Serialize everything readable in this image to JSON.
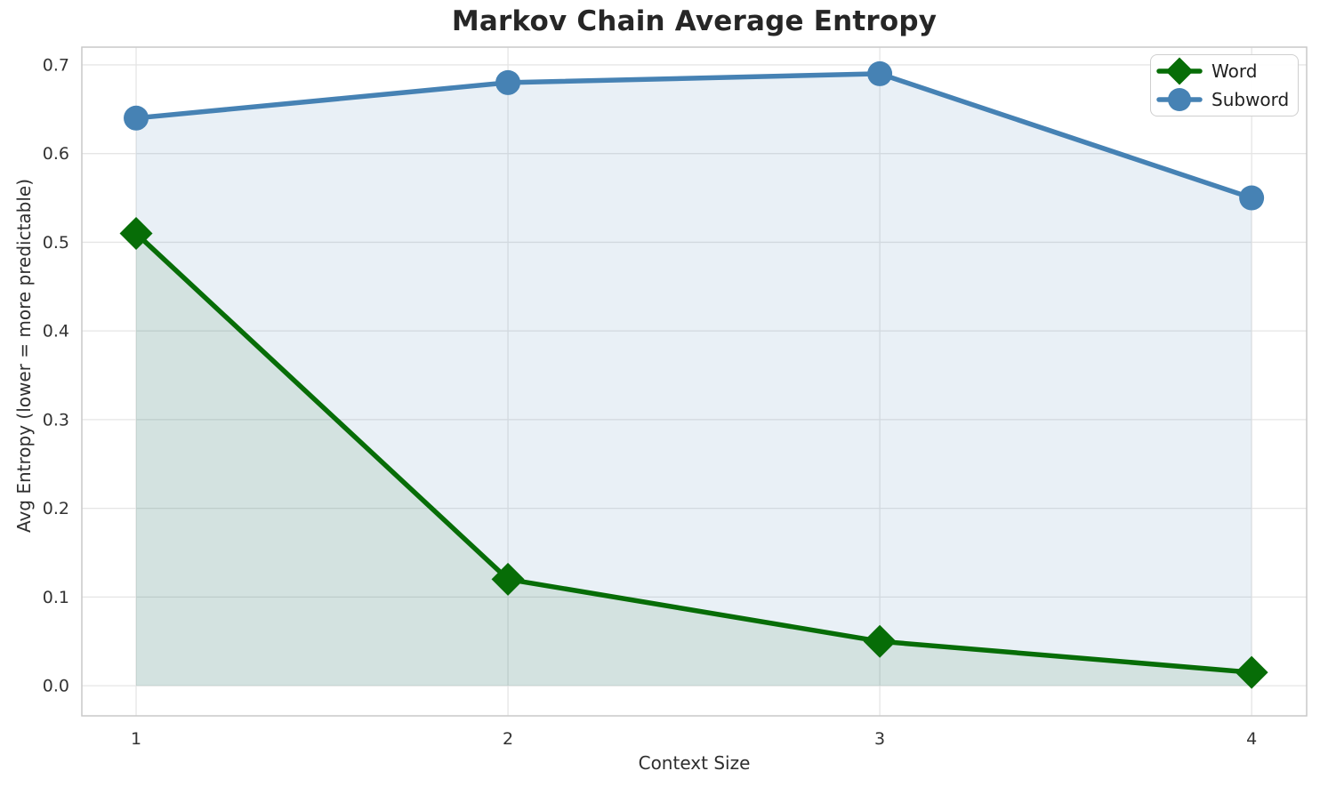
{
  "chart_data": {
    "type": "line",
    "title": "Markov Chain Average Entropy",
    "xlabel": "Context Size",
    "ylabel": "Avg Entropy (lower = more predictable)",
    "x": [
      1,
      2,
      3,
      4
    ],
    "xtick_labels": [
      "1",
      "2",
      "3",
      "4"
    ],
    "ytick_values": [
      0.0,
      0.1,
      0.2,
      0.3,
      0.4,
      0.5,
      0.6,
      0.7
    ],
    "ytick_labels": [
      "0.0",
      "0.1",
      "0.2",
      "0.3",
      "0.4",
      "0.5",
      "0.6",
      "0.7"
    ],
    "xlim": [
      0.854,
      4.148
    ],
    "ylim": [
      -0.034,
      0.72
    ],
    "grid": true,
    "legend_position": "upper right",
    "fill_baseline": 0.0,
    "series": [
      {
        "name": "Word",
        "values": [
          0.51,
          0.12,
          0.05,
          0.015
        ],
        "color": "#076d07",
        "marker": "diamond",
        "fill_alpha": 0.1
      },
      {
        "name": "Subword",
        "values": [
          0.64,
          0.68,
          0.69,
          0.55
        ],
        "color": "#4682b4",
        "marker": "circle",
        "fill_alpha": 0.12
      }
    ],
    "colors": {
      "grid": "#e5e5e5",
      "spine": "#c9c9c9",
      "tick_text": "#333333",
      "label_text": "#2e2e2e",
      "title_text": "#262626"
    }
  }
}
